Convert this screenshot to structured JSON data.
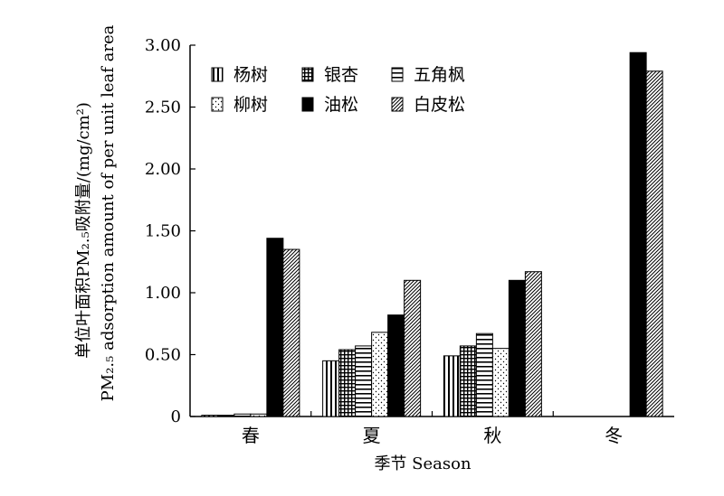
{
  "chart_data": {
    "type": "bar",
    "xlabel": "季节 Season",
    "ylabel_line1": "单位叶面积PM₂.₅吸附量/(mg/cm²)",
    "ylabel_line2": "PM₂.₅ adsorption amount of per unit leaf area",
    "ylim": [
      0,
      3.0
    ],
    "yticks": [
      0,
      0.5,
      1.0,
      1.5,
      2.0,
      2.5,
      3.0
    ],
    "ytick_labels": [
      "0",
      "0.50",
      "1.00",
      "1.50",
      "2.00",
      "2.50",
      "3.00"
    ],
    "categories": [
      "春",
      "夏",
      "秋",
      "冬"
    ],
    "legend_position": "top-left",
    "series": [
      {
        "name": "杨树",
        "pattern": "vlines",
        "values": [
          0.01,
          0.45,
          0.49,
          0
        ]
      },
      {
        "name": "银杏",
        "pattern": "grid",
        "values": [
          0.01,
          0.54,
          0.57,
          0
        ]
      },
      {
        "name": "五角枫",
        "pattern": "hlines",
        "values": [
          0.02,
          0.57,
          0.67,
          0
        ]
      },
      {
        "name": "柳树",
        "pattern": "dots",
        "values": [
          0.02,
          0.68,
          0.55,
          0
        ]
      },
      {
        "name": "油松",
        "pattern": "solid",
        "values": [
          1.44,
          0.82,
          1.1,
          2.94
        ]
      },
      {
        "name": "白皮松",
        "pattern": "diag",
        "values": [
          1.35,
          1.1,
          1.17,
          2.79
        ]
      }
    ]
  }
}
